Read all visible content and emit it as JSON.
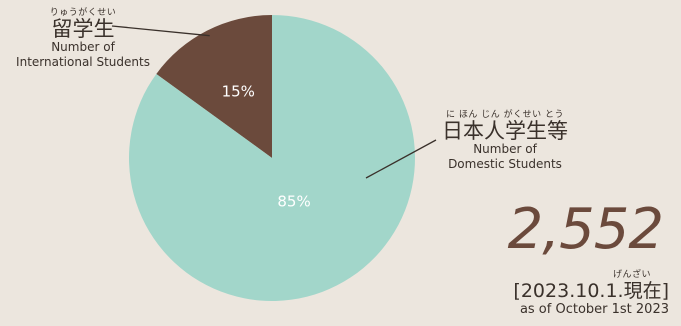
{
  "chart_data": {
    "type": "pie",
    "slices": [
      {
        "ruby": "りゅうがくせい",
        "label": "留学生",
        "english": "Number of International Students",
        "english_lines": [
          "Number of",
          "International Students"
        ],
        "value": 15,
        "value_label": "15%",
        "color": "#6b4a3c"
      },
      {
        "ruby": "に ほん じん がくせい とう",
        "label": "日本人学生等",
        "english": "Number of Domestic Students",
        "english_lines": [
          "Number of",
          "Domestic Students"
        ],
        "value": 85,
        "value_label": "85%",
        "color": "#a2d6ca"
      }
    ]
  },
  "total": {
    "value": "2,552"
  },
  "date": {
    "ruby": "げんざい",
    "main": "[2023.10.1.現在]",
    "english": "as of October 1st 2023"
  }
}
